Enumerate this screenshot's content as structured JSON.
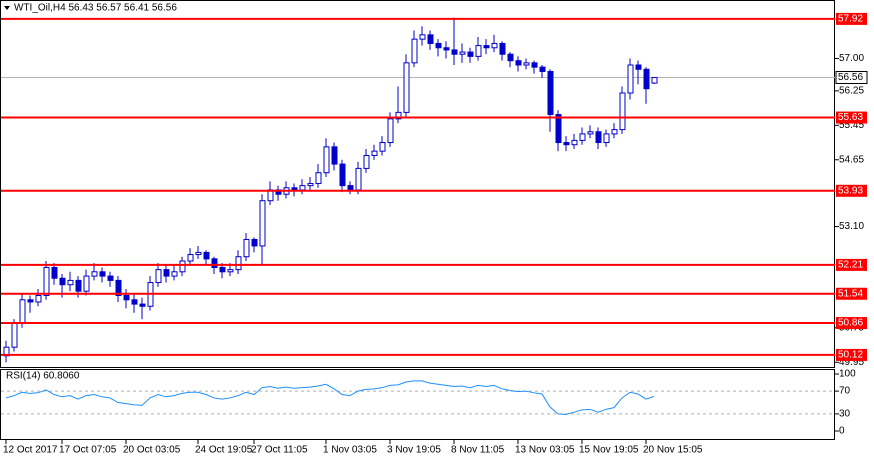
{
  "chart_data": {
    "type": "candlestick",
    "title": "WTI_Oil,H4 56.43 56.57 56.41 56.56",
    "categories": [
      "12 Oct 2017",
      null,
      null,
      null,
      null,
      null,
      null,
      "17 Oct 07:05",
      null,
      null,
      null,
      null,
      null,
      null,
      null,
      "20 Oct 03:05",
      null,
      null,
      null,
      null,
      null,
      null,
      null,
      null,
      "24 Oct 19:05",
      null,
      null,
      null,
      null,
      null,
      null,
      "27 Oct 11:05",
      null,
      null,
      null,
      null,
      null,
      null,
      null,
      null,
      "1 Nov 03:05",
      null,
      null,
      null,
      null,
      null,
      null,
      null,
      "3 Nov 19:05",
      null,
      null,
      null,
      null,
      null,
      null,
      null,
      "8 Nov 11:05",
      null,
      null,
      null,
      null,
      null,
      null,
      null,
      "13 Nov 03:05",
      null,
      null,
      null,
      null,
      null,
      null,
      null,
      "15 Nov 19:05",
      null,
      null,
      null,
      null,
      null,
      null,
      null,
      "20 Nov 15:05",
      null
    ],
    "open": [
      50.1,
      50.3,
      50.85,
      51.4,
      51.35,
      51.5,
      52.15,
      51.9,
      51.75,
      51.85,
      51.6,
      51.95,
      52.05,
      51.95,
      51.85,
      51.5,
      51.4,
      51.3,
      51.25,
      51.8,
      52.1,
      51.95,
      52.05,
      52.3,
      52.45,
      52.5,
      52.35,
      52.15,
      52.05,
      52.1,
      52.4,
      52.8,
      52.65,
      53.7,
      53.95,
      53.85,
      54.0,
      53.95,
      54.05,
      54.1,
      54.35,
      54.95,
      54.55,
      54.05,
      53.95,
      54.45,
      54.75,
      54.85,
      55.05,
      55.6,
      55.75,
      56.9,
      57.45,
      57.55,
      57.35,
      57.25,
      57.2,
      57.1,
      57.15,
      57.05,
      57.3,
      57.25,
      57.35,
      57.1,
      56.95,
      56.85,
      56.9,
      56.8,
      56.7,
      55.7,
      55.05,
      55.0,
      55.1,
      55.25,
      55.3,
      55.05,
      55.25,
      55.35,
      56.2,
      56.85,
      56.75,
      56.43
    ],
    "high": [
      50.45,
      50.95,
      51.55,
      51.5,
      51.65,
      52.3,
      52.25,
      52.0,
      52.05,
      51.95,
      52.1,
      52.25,
      52.15,
      52.05,
      51.95,
      51.65,
      51.55,
      51.45,
      51.95,
      52.25,
      52.2,
      52.2,
      52.4,
      52.6,
      52.65,
      52.55,
      52.4,
      52.25,
      52.25,
      52.55,
      52.95,
      52.85,
      53.85,
      54.15,
      54.05,
      54.15,
      54.1,
      54.2,
      54.25,
      54.55,
      55.15,
      55.05,
      54.65,
      54.15,
      54.6,
      54.9,
      55.0,
      55.2,
      55.75,
      56.35,
      57.1,
      57.65,
      57.75,
      57.65,
      57.45,
      57.4,
      57.95,
      57.35,
      57.25,
      57.5,
      57.45,
      57.55,
      57.4,
      57.15,
      57.05,
      57.0,
      56.95,
      56.85,
      56.75,
      55.8,
      55.2,
      55.25,
      55.4,
      55.45,
      55.4,
      55.35,
      55.5,
      56.35,
      57.0,
      56.95,
      56.8,
      56.57
    ],
    "low": [
      49.95,
      50.2,
      50.75,
      51.1,
      51.25,
      51.4,
      51.75,
      51.45,
      51.6,
      51.45,
      51.5,
      51.85,
      51.8,
      51.7,
      51.35,
      51.2,
      51.1,
      50.95,
      51.15,
      51.7,
      51.8,
      51.85,
      51.95,
      52.2,
      52.35,
      52.2,
      52.0,
      51.9,
      51.95,
      52.0,
      52.3,
      52.5,
      52.2,
      53.6,
      53.7,
      53.75,
      53.8,
      53.85,
      53.95,
      54.0,
      54.25,
      54.4,
      53.9,
      53.85,
      53.85,
      54.35,
      54.65,
      54.75,
      54.95,
      55.5,
      55.65,
      56.8,
      57.3,
      57.2,
      57.05,
      57.0,
      56.85,
      56.9,
      56.9,
      56.95,
      57.1,
      57.15,
      56.95,
      56.8,
      56.7,
      56.75,
      56.65,
      56.55,
      55.3,
      54.85,
      54.85,
      54.9,
      55.0,
      55.15,
      54.9,
      54.95,
      55.15,
      55.25,
      56.05,
      56.4,
      55.95,
      56.41
    ],
    "close": [
      50.3,
      50.85,
      51.4,
      51.35,
      51.5,
      52.15,
      51.9,
      51.75,
      51.85,
      51.6,
      51.95,
      52.05,
      51.95,
      51.85,
      51.5,
      51.4,
      51.3,
      51.25,
      51.8,
      52.1,
      51.95,
      52.05,
      52.3,
      52.45,
      52.5,
      52.35,
      52.15,
      52.05,
      52.1,
      52.4,
      52.8,
      52.65,
      53.7,
      53.95,
      53.85,
      54.0,
      53.95,
      54.05,
      54.1,
      54.35,
      54.95,
      54.55,
      54.05,
      53.95,
      54.45,
      54.75,
      54.85,
      55.05,
      55.6,
      55.75,
      56.9,
      57.45,
      57.55,
      57.35,
      57.25,
      57.2,
      57.1,
      57.15,
      57.05,
      57.3,
      57.25,
      57.35,
      57.1,
      56.95,
      56.85,
      56.9,
      56.8,
      56.7,
      55.7,
      55.05,
      55.0,
      55.1,
      55.25,
      55.3,
      55.05,
      55.25,
      55.35,
      56.2,
      56.85,
      56.75,
      56.3,
      56.56
    ],
    "up_color": "#0000cd",
    "down_color": "#0000cd",
    "ylim": [
      49.84,
      58.08
    ],
    "yticks": [
      {
        "value": 57,
        "label": "57.00"
      },
      56.25,
      55.45,
      54.65,
      {
        "value": 53.1,
        "label": "53.10"
      },
      50.75,
      49.95
    ],
    "levels": [
      57.92,
      55.63,
      53.93,
      52.21,
      51.54,
      50.86,
      50.12
    ],
    "level_color": "#ff0000",
    "current_price": 56.56,
    "indicator": {
      "title": "RSI(14) 60.8060",
      "color": "#1e90ff",
      "ylim": [
        0,
        100
      ],
      "yticks": [
        0,
        30,
        70,
        100
      ],
      "values": [
        58,
        62,
        68,
        66,
        67,
        72,
        64,
        60,
        62,
        56,
        62,
        64,
        60,
        58,
        50,
        48,
        46,
        45,
        58,
        64,
        60,
        62,
        66,
        68,
        68,
        64,
        58,
        56,
        58,
        62,
        68,
        64,
        76,
        78,
        75,
        77,
        75,
        76,
        77,
        79,
        82,
        74,
        64,
        62,
        70,
        73,
        74,
        76,
        80,
        81,
        86,
        88,
        88,
        84,
        82,
        80,
        78,
        79,
        76,
        80,
        78,
        80,
        74,
        71,
        69,
        70,
        67,
        65,
        42,
        30,
        29,
        33,
        37,
        38,
        33,
        38,
        41,
        58,
        68,
        65,
        56,
        60.806
      ]
    }
  }
}
